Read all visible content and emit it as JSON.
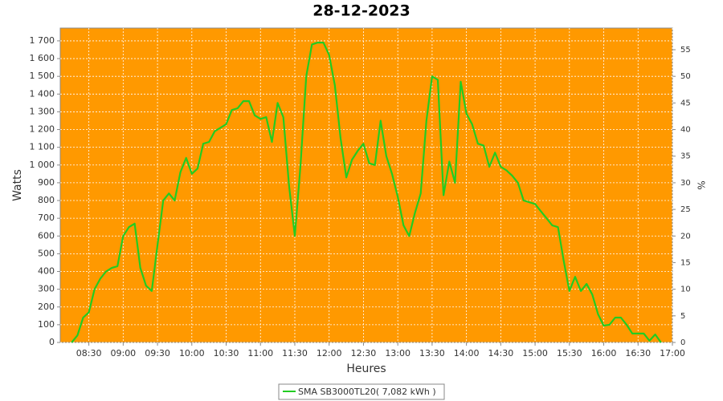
{
  "chart_data": {
    "type": "line",
    "title": "28-12-2023",
    "x_label": "Heures",
    "y_label": "Watts",
    "y2_label": "%",
    "x": [
      "08:15",
      "08:20",
      "08:25",
      "08:30",
      "08:35",
      "08:40",
      "08:45",
      "08:50",
      "08:55",
      "09:00",
      "09:05",
      "09:10",
      "09:15",
      "09:20",
      "09:25",
      "09:30",
      "09:35",
      "09:40",
      "09:45",
      "09:50",
      "09:55",
      "10:00",
      "10:05",
      "10:10",
      "10:15",
      "10:20",
      "10:25",
      "10:30",
      "10:35",
      "10:40",
      "10:45",
      "10:50",
      "10:55",
      "11:00",
      "11:05",
      "11:10",
      "11:15",
      "11:20",
      "11:25",
      "11:30",
      "11:35",
      "11:40",
      "11:45",
      "11:50",
      "11:55",
      "12:00",
      "12:05",
      "12:10",
      "12:15",
      "12:20",
      "12:25",
      "12:30",
      "12:35",
      "12:40",
      "12:45",
      "12:50",
      "12:55",
      "13:00",
      "13:05",
      "13:10",
      "13:15",
      "13:20",
      "13:25",
      "13:30",
      "13:35",
      "13:40",
      "13:45",
      "13:50",
      "13:55",
      "14:00",
      "14:05",
      "14:10",
      "14:15",
      "14:20",
      "14:25",
      "14:30",
      "14:35",
      "14:40",
      "14:45",
      "14:50",
      "14:55",
      "15:00",
      "15:05",
      "15:10",
      "15:15",
      "15:20",
      "15:25",
      "15:30",
      "15:35",
      "15:40",
      "15:45",
      "15:50",
      "15:55",
      "16:00",
      "16:05",
      "16:10",
      "16:15",
      "16:20",
      "16:25",
      "16:30",
      "16:35",
      "16:40",
      "16:45",
      "16:50"
    ],
    "series": [
      {
        "name": "SMA SB3000TL20( 7,082 kWh )",
        "color": "#22cc22",
        "values": [
          0,
          40,
          140,
          170,
          300,
          360,
          400,
          420,
          430,
          600,
          650,
          670,
          420,
          320,
          290,
          550,
          800,
          840,
          800,
          960,
          1040,
          950,
          980,
          1120,
          1130,
          1190,
          1210,
          1230,
          1310,
          1320,
          1360,
          1360,
          1280,
          1260,
          1270,
          1130,
          1350,
          1270,
          880,
          600,
          1000,
          1500,
          1680,
          1690,
          1690,
          1620,
          1450,
          1150,
          930,
          1030,
          1080,
          1120,
          1010,
          1000,
          1250,
          1050,
          950,
          820,
          660,
          600,
          730,
          840,
          1250,
          1500,
          1480,
          830,
          1020,
          900,
          1470,
          1290,
          1230,
          1120,
          1110,
          990,
          1070,
          990,
          970,
          940,
          900,
          800,
          790,
          780,
          740,
          700,
          660,
          650,
          460,
          290,
          370,
          290,
          330,
          270,
          160,
          95,
          100,
          140,
          140,
          100,
          50,
          50,
          50,
          10,
          45,
          0
        ]
      }
    ],
    "xlim": [
      "08:05",
      "17:00"
    ],
    "xticks": [
      "08:30",
      "09:00",
      "09:30",
      "10:00",
      "10:30",
      "11:00",
      "11:30",
      "12:00",
      "12:30",
      "13:00",
      "13:30",
      "14:00",
      "14:30",
      "15:00",
      "15:30",
      "16:00",
      "16:30",
      "17:00"
    ],
    "ylim": [
      0,
      1772
    ],
    "yticks": [
      0,
      100,
      200,
      300,
      400,
      500,
      600,
      700,
      800,
      900,
      {
        "value": 1000,
        "label": "1 000"
      },
      {
        "value": 1100,
        "label": "1 100"
      },
      {
        "value": 1200,
        "label": "1 200"
      },
      {
        "value": 1300,
        "label": "1 300"
      },
      {
        "value": 1400,
        "label": "1 400"
      },
      {
        "value": 1500,
        "label": "1 500"
      },
      {
        "value": 1600,
        "label": "1 600"
      },
      {
        "value": 1700,
        "label": "1 700"
      }
    ],
    "y2lim": [
      0,
      59.07
    ],
    "y2ticks": [
      0,
      5,
      10,
      15,
      20,
      25,
      30,
      35,
      40,
      45,
      50,
      55
    ],
    "grid": true,
    "plot_background": "#ff9900",
    "legend": "bottom"
  }
}
